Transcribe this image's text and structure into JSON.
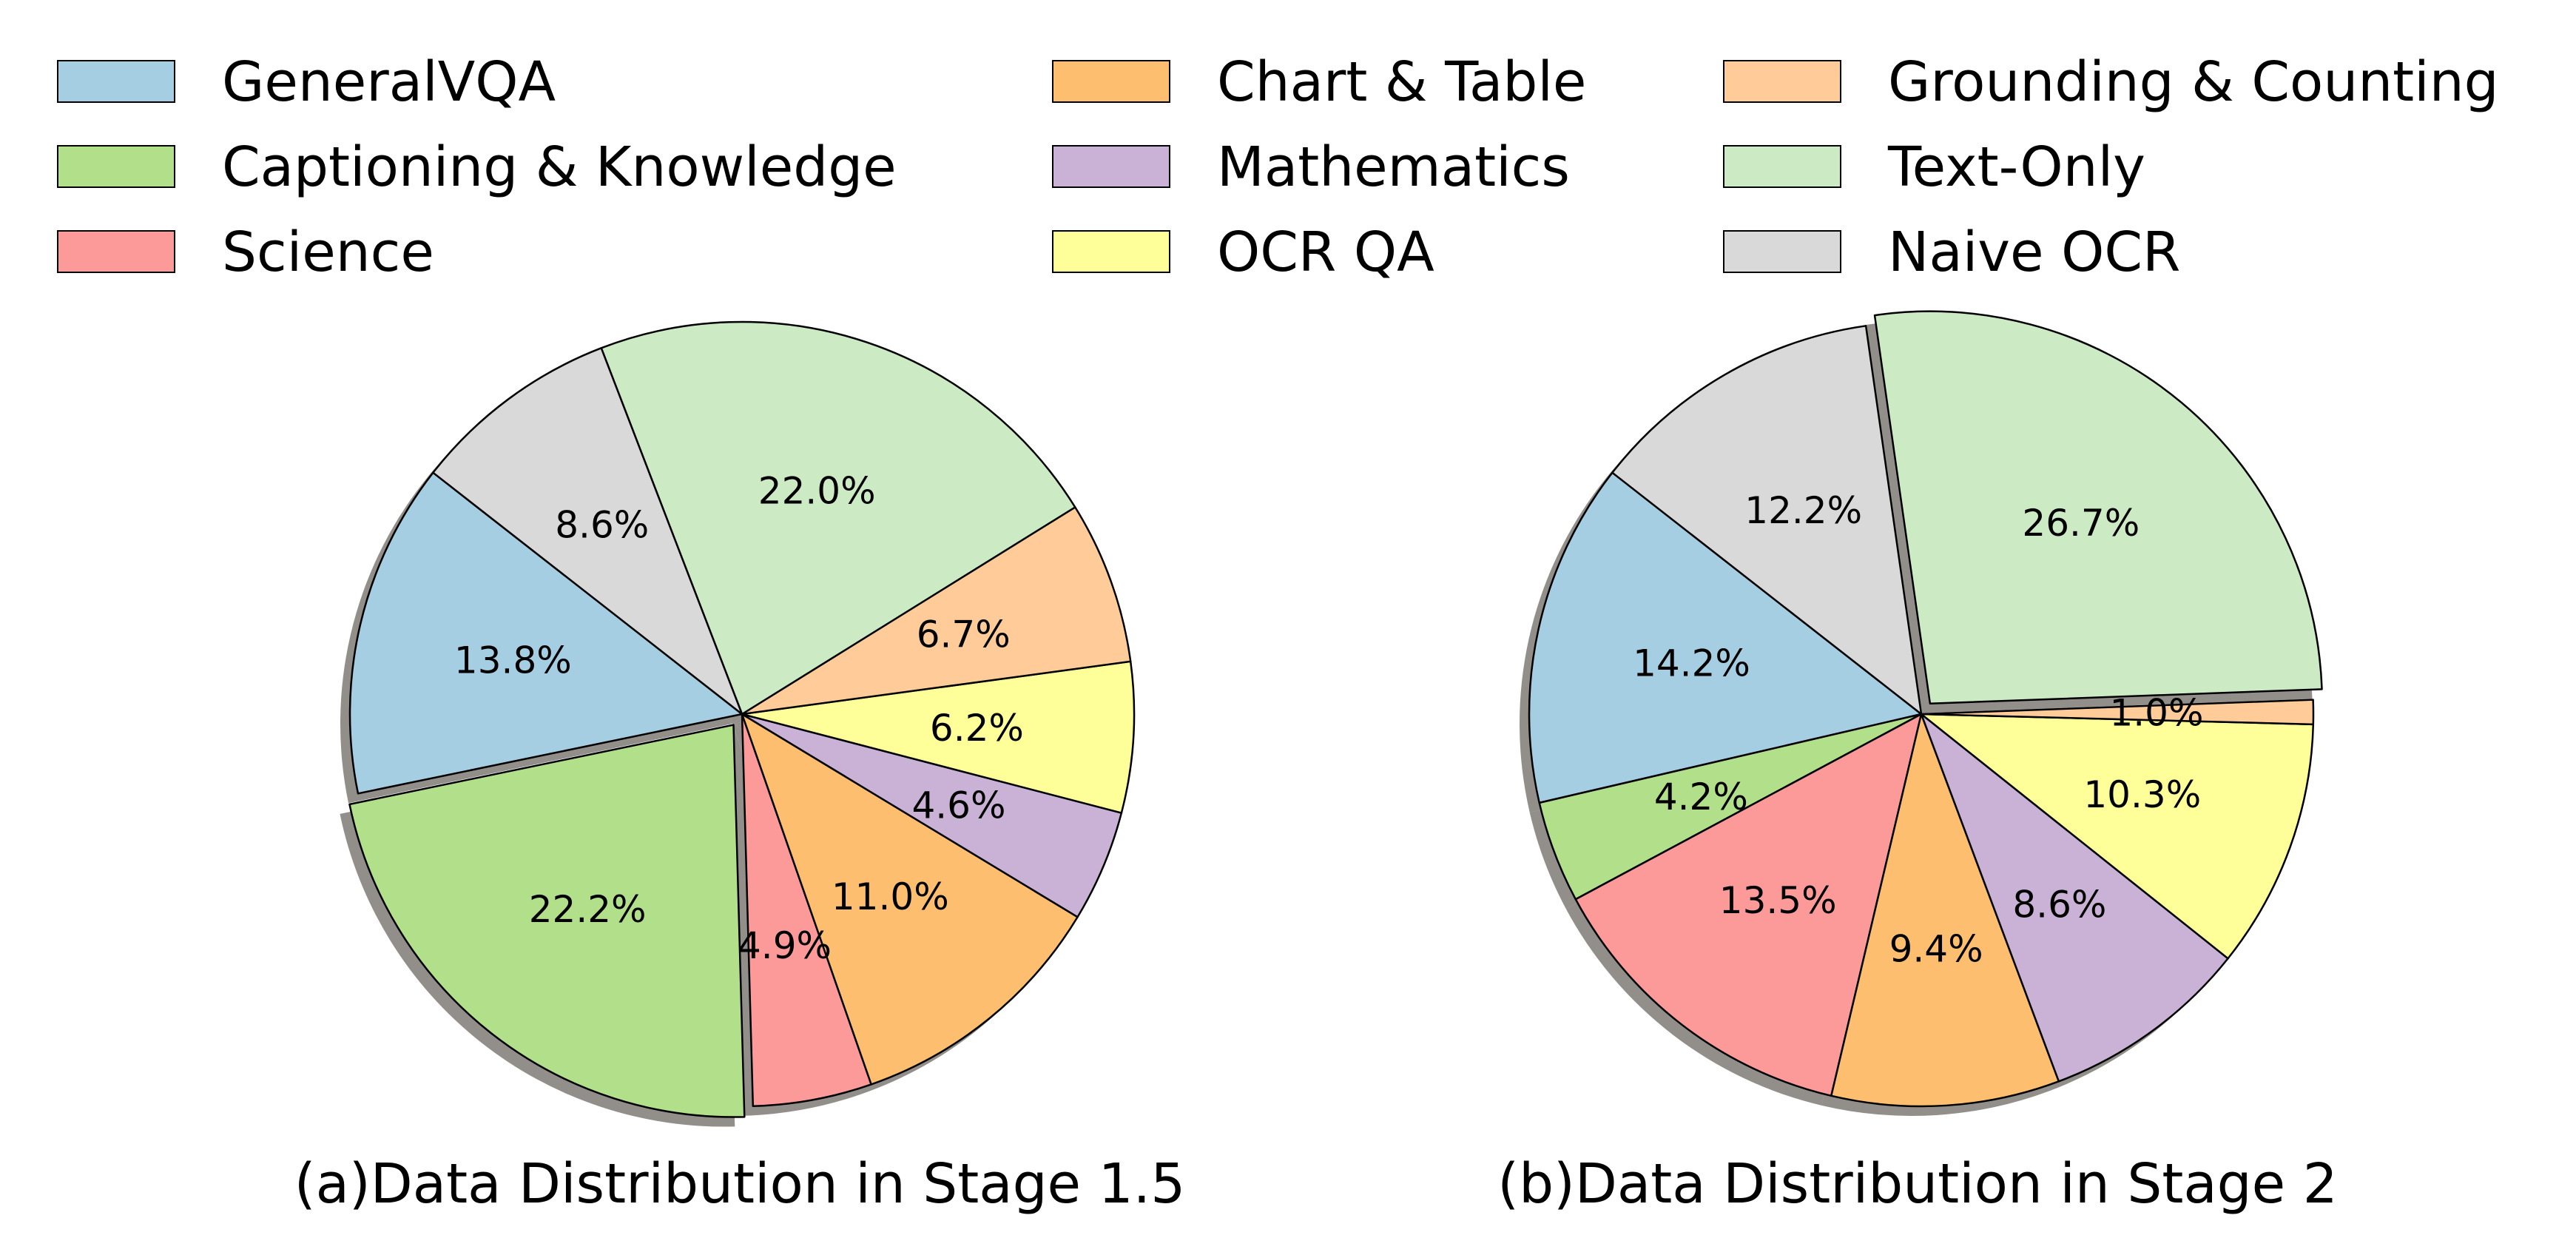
{
  "chart_data": {
    "type": "pie",
    "legend": {
      "placement": "top",
      "entries": [
        {
          "label": "GeneralVQA",
          "color": "#a6cee3"
        },
        {
          "label": "Captioning & Knowledge",
          "color": "#b2df8a"
        },
        {
          "label": "Science",
          "color": "#fb9a99"
        },
        {
          "label": "Chart & Table",
          "color": "#fdbf6f"
        },
        {
          "label": "Mathematics",
          "color": "#cab2d6"
        },
        {
          "label": "OCR QA",
          "color": "#ffff99"
        },
        {
          "label": "Grounding & Counting",
          "color": "#ffcc99"
        },
        {
          "label": "Text-Only",
          "color": "#ccebc5"
        },
        {
          "label": "Naive OCR",
          "color": "#d9d9d9"
        }
      ]
    },
    "charts": [
      {
        "title": "(a)Data Distribution in Stage 1.5",
        "values": [
          13.8,
          22.2,
          4.9,
          11.0,
          4.6,
          6.2,
          6.7,
          22.0,
          8.6
        ],
        "labels": [
          "13.8%",
          "22.2%",
          "4.9%",
          "11.0%",
          "4.6%",
          "6.2%",
          "6.7%",
          "22.0%",
          "8.6%"
        ],
        "exploded": [
          false,
          true,
          false,
          false,
          false,
          false,
          false,
          false,
          false
        ],
        "start_angle": 142,
        "shadow": true
      },
      {
        "title": "(b)Data Distribution in Stage 2",
        "values": [
          14.2,
          4.2,
          13.5,
          9.4,
          8.6,
          10.3,
          1.0,
          26.7,
          12.2
        ],
        "labels": [
          "14.2%",
          "4.2%",
          "13.5%",
          "9.4%",
          "8.6%",
          "10.3%",
          "1.0%",
          "26.7%",
          "12.2%"
        ],
        "exploded": [
          false,
          false,
          false,
          false,
          false,
          false,
          false,
          true,
          false
        ],
        "start_angle": 142,
        "shadow": true
      }
    ]
  }
}
